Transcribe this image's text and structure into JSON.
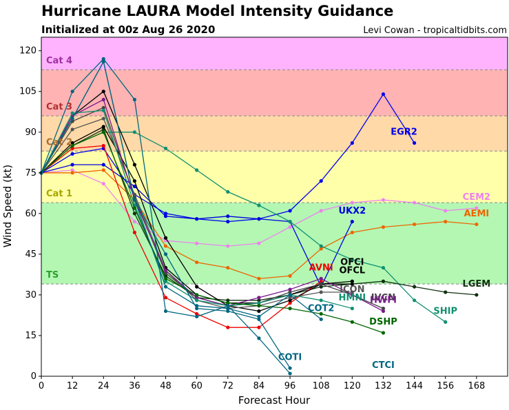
{
  "header": {
    "title": "Hurricane LAURA Model Intensity Guidance",
    "subtitle": "Initialized at 00z Aug 26 2020",
    "credit": "Levi Cowan - tropicaltidbits.com"
  },
  "chart_data": {
    "type": "line",
    "title": "Hurricane LAURA Model Intensity Guidance",
    "subtitle": "Initialized at 00z Aug 26 2020",
    "xlabel": "Forecast Hour",
    "ylabel": "Wind Speed (kt)",
    "xlim": [
      0,
      180
    ],
    "ylim": [
      0,
      125
    ],
    "x_ticks": [
      0,
      12,
      24,
      36,
      48,
      60,
      72,
      84,
      96,
      108,
      120,
      132,
      144,
      156,
      168
    ],
    "y_ticks": [
      0,
      15,
      30,
      45,
      60,
      75,
      90,
      105,
      120
    ],
    "grid": false,
    "bands": [
      {
        "label": "",
        "from": 0,
        "to": 34,
        "color": "#ffffff"
      },
      {
        "label": "TS",
        "from": 34,
        "to": 64,
        "color": "#b3f7b3",
        "text_color": "#2ca02c"
      },
      {
        "label": "Cat 1",
        "from": 64,
        "to": 83,
        "color": "#ffffaa",
        "text_color": "#a6a600"
      },
      {
        "label": "Cat 2",
        "from": 83,
        "to": 96,
        "color": "#ffd9a8",
        "text_color": "#a66b2e"
      },
      {
        "label": "Cat 3",
        "from": 96,
        "to": 113,
        "color": "#ffb3b3",
        "text_color": "#b03030"
      },
      {
        "label": "Cat 4",
        "from": 113,
        "to": 125,
        "color": "#ffb3ff",
        "text_color": "#a030a0"
      }
    ],
    "series": [
      {
        "name": "EGR2",
        "color": "#0000ee",
        "x": [
          0,
          12,
          24,
          36,
          48,
          60,
          72,
          84,
          96,
          108,
          120,
          132,
          144
        ],
        "y": [
          75,
          82,
          84,
          67,
          60,
          58,
          57,
          58,
          61,
          72,
          86,
          104,
          86
        ],
        "label_at": [
          140,
          89
        ]
      },
      {
        "name": "CEM2",
        "color": "#ee82ee",
        "x": [
          0,
          12,
          24,
          36,
          48,
          60,
          72,
          84,
          96,
          108,
          120,
          132,
          144,
          156,
          168
        ],
        "y": [
          75,
          76,
          71,
          57,
          50,
          49,
          48,
          49,
          55,
          61,
          64,
          65,
          64,
          61,
          62
        ],
        "label_at": [
          168,
          65
        ]
      },
      {
        "name": "AEMI",
        "color": "#ee6600",
        "x": [
          0,
          12,
          24,
          36,
          48,
          60,
          72,
          84,
          96,
          108,
          120,
          132,
          144,
          156,
          168
        ],
        "y": [
          75,
          75,
          76,
          65,
          48,
          42,
          40,
          36,
          37,
          47,
          53,
          55,
          56,
          57,
          56
        ],
        "label_at": [
          168,
          59
        ]
      },
      {
        "name": "UKX2",
        "color": "#0000dd",
        "x": [
          0,
          12,
          24,
          36,
          48,
          60,
          72,
          84,
          96,
          108,
          120
        ],
        "y": [
          75,
          78,
          78,
          70,
          59,
          58,
          59,
          58,
          57,
          33,
          57
        ],
        "label_at": [
          120,
          60
        ]
      },
      {
        "name": "SHIP",
        "color": "#109070",
        "x": [
          0,
          12,
          24,
          36,
          48,
          60,
          72,
          84,
          96,
          108,
          120,
          132,
          144,
          156
        ],
        "y": [
          75,
          85,
          90,
          90,
          84,
          76,
          68,
          63,
          57,
          48,
          43,
          40,
          28,
          20
        ],
        "label_at": [
          156,
          23
        ]
      },
      {
        "name": "LGEM",
        "color": "#103010",
        "x": [
          0,
          12,
          24,
          36,
          48,
          60,
          72,
          84,
          96,
          108,
          120,
          132,
          144,
          156,
          168
        ],
        "y": [
          75,
          85,
          91,
          60,
          37,
          29,
          28,
          28,
          30,
          33,
          34,
          35,
          33,
          31,
          30
        ],
        "label_at": [
          168,
          33
        ]
      },
      {
        "name": "AVNI",
        "color": "#ee0000",
        "x": [
          0,
          12,
          24,
          36,
          48,
          60,
          72,
          84,
          96,
          108
        ],
        "y": [
          75,
          84,
          85,
          53,
          29,
          23,
          18,
          18,
          27,
          35
        ],
        "label_at": [
          108,
          39
        ]
      },
      {
        "name": "OFCI",
        "color": "#000000",
        "x": [
          0,
          12,
          24,
          36,
          48,
          60,
          72,
          84,
          96,
          108,
          120
        ],
        "y": [
          75,
          96,
          105,
          78,
          51,
          33,
          26,
          24,
          28,
          34,
          35
        ],
        "label_at": [
          120,
          41
        ]
      },
      {
        "name": "OFCL",
        "color": "#000000",
        "x": [
          0,
          12,
          24,
          36,
          48,
          60,
          72,
          84,
          96,
          108,
          120
        ],
        "y": [
          75,
          86,
          92,
          72,
          40,
          30,
          27,
          27,
          30,
          34,
          34
        ],
        "label_at": [
          120,
          38
        ]
      },
      {
        "name": "ICON",
        "color": "#555555",
        "x": [
          0,
          12,
          24,
          36,
          48,
          60,
          72,
          84,
          96,
          108,
          120
        ],
        "y": [
          75,
          91,
          95,
          67,
          39,
          28,
          25,
          26,
          29,
          31,
          31
        ],
        "label_at": [
          120,
          31
        ]
      },
      {
        "name": "IVCN",
        "color": "#444444",
        "x": [
          0,
          12,
          24,
          36,
          48,
          60,
          72,
          84,
          96,
          108,
          120,
          132
        ],
        "y": [
          75,
          94,
          99,
          66,
          38,
          29,
          26,
          27,
          31,
          34,
          30,
          25
        ],
        "label_at": [
          132,
          28
        ]
      },
      {
        "name": "HWFI",
        "color": "#7a1a8c",
        "x": [
          0,
          12,
          24,
          36,
          48,
          60,
          72,
          84,
          96,
          108,
          120,
          132
        ],
        "y": [
          75,
          96,
          102,
          65,
          39,
          29,
          26,
          29,
          32,
          36,
          30,
          24
        ],
        "label_at": [
          132,
          27
        ]
      },
      {
        "name": "HMNI",
        "color": "#109070",
        "x": [
          0,
          12,
          24,
          36,
          48,
          60,
          72,
          84,
          96,
          108,
          120
        ],
        "y": [
          75,
          97,
          98,
          63,
          35,
          28,
          26,
          27,
          30,
          28,
          25
        ],
        "label_at": [
          120,
          28
        ]
      },
      {
        "name": "DSHP",
        "color": "#006600",
        "x": [
          0,
          12,
          24,
          36,
          48,
          60,
          72,
          84,
          96,
          108,
          120,
          132
        ],
        "y": [
          75,
          85,
          90,
          62,
          36,
          30,
          27,
          26,
          25,
          23,
          20,
          16
        ],
        "label_at": [
          132,
          19
        ]
      },
      {
        "name": "COT2",
        "color": "#006680",
        "x": [
          0,
          12,
          24,
          36,
          48,
          60,
          72,
          84,
          96,
          108
        ],
        "y": [
          75,
          95,
          116,
          65,
          33,
          26,
          25,
          22,
          30,
          21
        ],
        "label_at": [
          108,
          24
        ]
      },
      {
        "name": "COTI",
        "color": "#006680",
        "x": [
          0,
          12,
          24,
          36,
          48,
          60,
          72,
          84,
          96
        ],
        "y": [
          75,
          105,
          117,
          102,
          24,
          22,
          26,
          14,
          1
        ],
        "label_at": [
          96,
          6
        ]
      },
      {
        "name": "CTCI",
        "color": "#006680",
        "x": [
          0,
          12,
          24,
          36,
          48,
          60,
          72,
          84,
          96
        ],
        "y": [
          75,
          95,
          116,
          65,
          45,
          25,
          24,
          21,
          3
        ],
        "label_at": [
          132,
          3
        ]
      }
    ]
  }
}
